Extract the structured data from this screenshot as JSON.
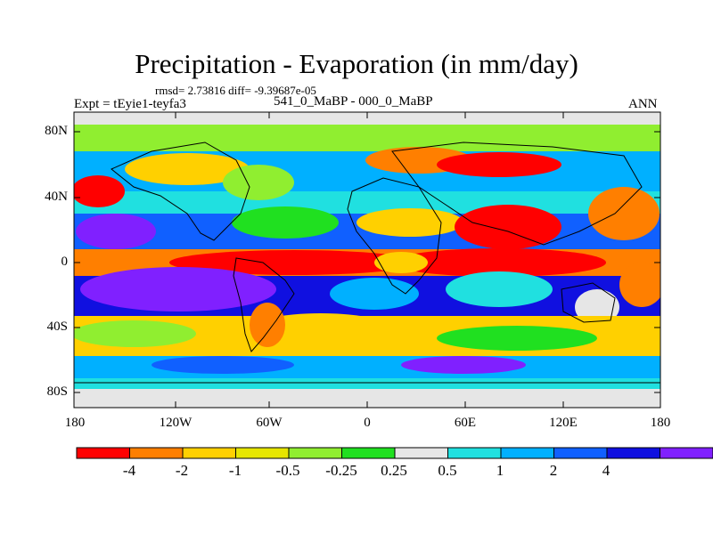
{
  "title": "Precipitation - Evaporation (in mm/day)",
  "stats": "rmsd= 2.73816 diff= -9.39687e-05",
  "experiment": "Expt = tEyie1-teyfa3",
  "difference_label": "541_0_MaBP - 000_0_MaBP",
  "season": "ANN",
  "y_tick_labels": [
    "80N",
    "40N",
    "0",
    "40S",
    "80S"
  ],
  "x_tick_labels": [
    "180",
    "120W",
    "60W",
    "0",
    "60E",
    "120E",
    "180"
  ],
  "colorbar": {
    "labels": [
      "-4",
      "-2",
      "-1",
      "-0.5",
      "-0.25",
      "0.25",
      "0.5",
      "1",
      "2",
      "4"
    ],
    "colors": [
      "#ff0000",
      "#ff7f00",
      "#ffd000",
      "#e6e600",
      "#90ee30",
      "#20e020",
      "#e6e6e6",
      "#20e0e0",
      "#00b0ff",
      "#1060ff",
      "#1010e0",
      "#8020ff"
    ]
  }
}
